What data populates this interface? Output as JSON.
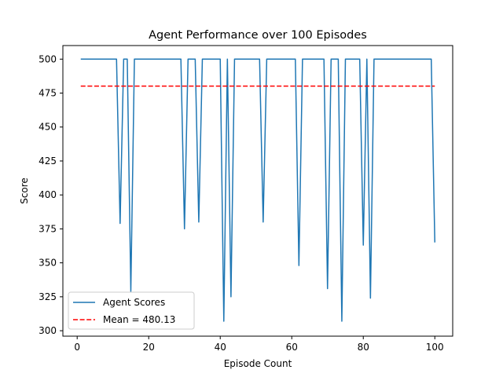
{
  "chart_data": {
    "type": "line",
    "title": "Agent Performance over 100 Episodes",
    "xlabel": "Episode Count",
    "ylabel": "Score",
    "xlim": [
      -4.0,
      105.0
    ],
    "ylim": [
      296.0,
      510.0
    ],
    "xticks": [
      0,
      20,
      40,
      60,
      80,
      100
    ],
    "yticks": [
      300,
      325,
      350,
      375,
      400,
      425,
      450,
      475,
      500
    ],
    "grid": false,
    "legend_position": "lower-left",
    "x": [
      1,
      2,
      3,
      4,
      5,
      6,
      7,
      8,
      9,
      10,
      11,
      12,
      13,
      14,
      15,
      16,
      17,
      18,
      19,
      20,
      21,
      22,
      23,
      24,
      25,
      26,
      27,
      28,
      29,
      30,
      31,
      32,
      33,
      34,
      35,
      36,
      37,
      38,
      39,
      40,
      41,
      42,
      43,
      44,
      45,
      46,
      47,
      48,
      49,
      50,
      51,
      52,
      53,
      54,
      55,
      56,
      57,
      58,
      59,
      60,
      61,
      62,
      63,
      64,
      65,
      66,
      67,
      68,
      69,
      70,
      71,
      72,
      73,
      74,
      75,
      76,
      77,
      78,
      79,
      80,
      81,
      82,
      83,
      84,
      85,
      86,
      87,
      88,
      89,
      90,
      91,
      92,
      93,
      94,
      95,
      96,
      97,
      98,
      99,
      100
    ],
    "series": [
      {
        "name": "Agent Scores",
        "color": "#1f77b4",
        "style": "solid",
        "values": [
          500,
          500,
          500,
          500,
          500,
          500,
          500,
          500,
          500,
          500,
          500,
          379,
          500,
          500,
          329,
          500,
          500,
          500,
          500,
          500,
          500,
          500,
          500,
          500,
          500,
          500,
          500,
          500,
          500,
          375,
          500,
          500,
          500,
          380,
          500,
          500,
          500,
          500,
          500,
          500,
          307,
          500,
          325,
          500,
          500,
          500,
          500,
          500,
          500,
          500,
          500,
          380,
          500,
          500,
          500,
          500,
          500,
          500,
          500,
          500,
          500,
          348,
          500,
          500,
          500,
          500,
          500,
          500,
          500,
          331,
          500,
          500,
          500,
          307,
          500,
          500,
          500,
          500,
          500,
          363,
          500,
          324,
          500,
          500,
          500,
          500,
          500,
          500,
          500,
          500,
          500,
          500,
          500,
          500,
          500,
          500,
          500,
          500,
          500,
          365
        ]
      },
      {
        "name": "Mean = 480.13",
        "label_prefix": "Mean",
        "label_value": "480.13",
        "color": "#ff0000",
        "style": "dashed",
        "values": [
          480.13,
          480.13,
          480.13,
          480.13,
          480.13,
          480.13,
          480.13,
          480.13,
          480.13,
          480.13,
          480.13,
          480.13,
          480.13,
          480.13,
          480.13,
          480.13,
          480.13,
          480.13,
          480.13,
          480.13,
          480.13,
          480.13,
          480.13,
          480.13,
          480.13,
          480.13,
          480.13,
          480.13,
          480.13,
          480.13,
          480.13,
          480.13,
          480.13,
          480.13,
          480.13,
          480.13,
          480.13,
          480.13,
          480.13,
          480.13,
          480.13,
          480.13,
          480.13,
          480.13,
          480.13,
          480.13,
          480.13,
          480.13,
          480.13,
          480.13,
          480.13,
          480.13,
          480.13,
          480.13,
          480.13,
          480.13,
          480.13,
          480.13,
          480.13,
          480.13,
          480.13,
          480.13,
          480.13,
          480.13,
          480.13,
          480.13,
          480.13,
          480.13,
          480.13,
          480.13,
          480.13,
          480.13,
          480.13,
          480.13,
          480.13,
          480.13,
          480.13,
          480.13,
          480.13,
          480.13,
          480.13,
          480.13,
          480.13,
          480.13,
          480.13,
          480.13,
          480.13,
          480.13,
          480.13,
          480.13,
          480.13,
          480.13,
          480.13,
          480.13,
          480.13,
          480.13,
          480.13,
          480.13,
          480.13,
          480.13
        ]
      }
    ]
  }
}
